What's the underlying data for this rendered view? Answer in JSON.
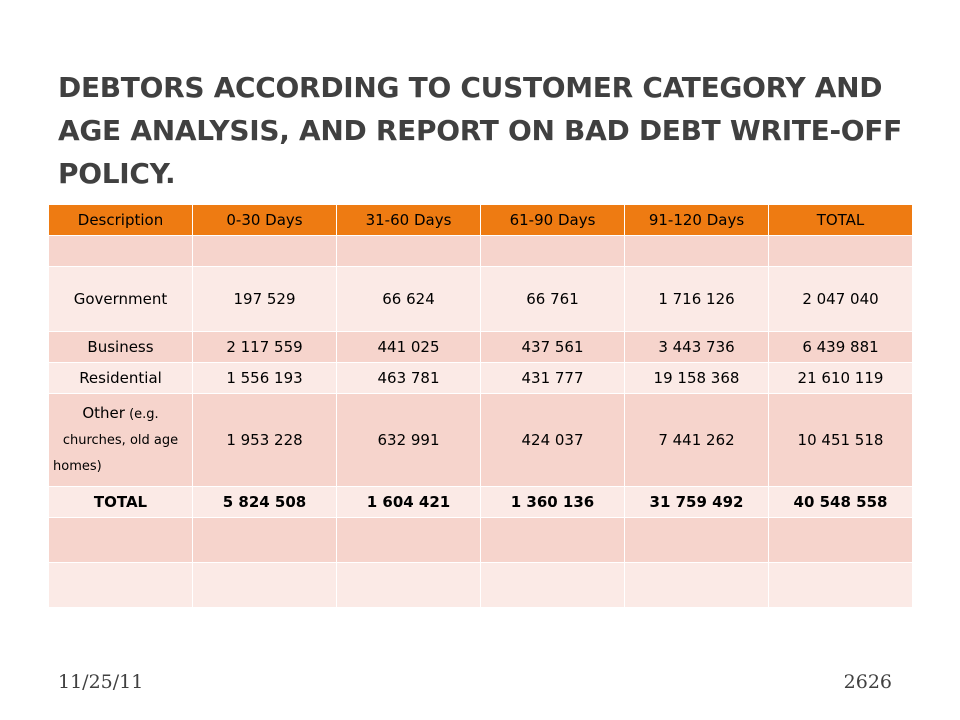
{
  "slide": {
    "title": "DEBTORS ACCORDING TO CUSTOMER CATEGORY AND AGE ANALYSIS, AND REPORT ON BAD DEBT WRITE-OFF POLICY."
  },
  "table": {
    "headers": [
      "Description",
      "0-30 Days",
      "31-60 Days",
      "61-90 Days",
      "91-120 Days",
      "TOTAL"
    ],
    "rows": [
      [
        "",
        "",
        "",
        "",
        "",
        ""
      ],
      [
        "Government",
        "197 529",
        "66 624",
        "66 761",
        "1 716 126",
        "2 047 040"
      ],
      [
        "Business",
        "2 117 559",
        "441 025",
        "437 561",
        "3 443 736",
        "6 439 881"
      ],
      [
        "Residential",
        "1 556 193",
        "463 781",
        "431 777",
        "19 158 368",
        "21 610 119"
      ],
      [
        "",
        "1 953 228",
        "632 991",
        "424 037",
        "7 441 262",
        "10 451 518"
      ],
      [
        "TOTAL",
        "5 824 508",
        "1 604 421",
        "1 360 136",
        "31 759 492",
        "40 548 558"
      ],
      [
        "",
        "",
        "",
        "",
        "",
        ""
      ],
      [
        "",
        "",
        "",
        "",
        "",
        ""
      ]
    ],
    "other_label": "Other",
    "other_note_1": "(e.g.",
    "other_note_2": "churches, old",
    "other_note_3": "age homes)"
  },
  "footer": {
    "date": "11/25/11",
    "page": "2626"
  },
  "colors": {
    "header_bg": "#ee7b12",
    "row_dark": "#f6d4cc",
    "row_light": "#fbeae6",
    "title_text": "#404040"
  }
}
